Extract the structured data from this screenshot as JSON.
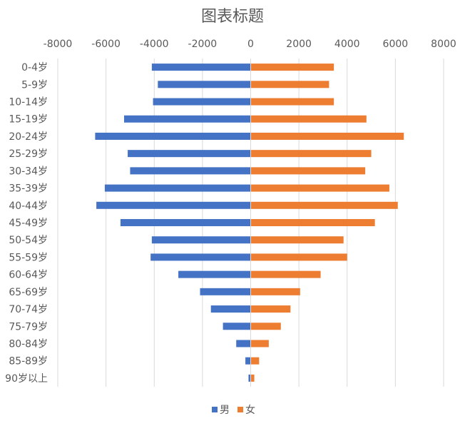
{
  "chart_data": {
    "type": "bar",
    "orientation": "horizontal",
    "title": "图表标题",
    "xlabel": "",
    "ylabel": "",
    "categories": [
      "0-4岁",
      "5-9岁",
      "10-14岁",
      "15-19岁",
      "20-24岁",
      "25-29岁",
      "30-34岁",
      "35-39岁",
      "40-44岁",
      "45-49岁",
      "50-54岁",
      "55-59岁",
      "60-64岁",
      "65-69岁",
      "70-74岁",
      "75-79岁",
      "80-84岁",
      "85-89岁",
      "90岁以上"
    ],
    "series": [
      {
        "name": "男",
        "color": "#4472C4",
        "values": [
          -4100,
          -3850,
          -4050,
          -5250,
          -6450,
          -5100,
          -5000,
          -6050,
          -6400,
          -5400,
          -4100,
          -4150,
          -3000,
          -2100,
          -1650,
          -1150,
          -600,
          -220,
          -90
        ]
      },
      {
        "name": "女",
        "color": "#ED7D31",
        "values": [
          3450,
          3250,
          3450,
          4800,
          6350,
          5000,
          4750,
          5750,
          6100,
          5150,
          3850,
          4000,
          2900,
          2050,
          1650,
          1250,
          750,
          350,
          150
        ]
      }
    ],
    "xlim": [
      -8000,
      8000
    ],
    "ticks": [
      -8000,
      -6000,
      -4000,
      -2000,
      0,
      2000,
      4000,
      6000,
      8000
    ],
    "tick_labels": [
      "-8000",
      "-6000",
      "-4000",
      "-2000",
      "0",
      "2000",
      "4000",
      "6000",
      "8000"
    ],
    "grid": true,
    "legend_position": "bottom"
  }
}
